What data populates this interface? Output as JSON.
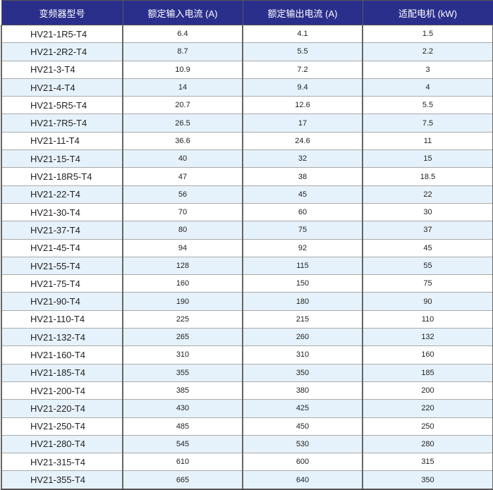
{
  "headers": [
    "变频器型号",
    "额定输入电流 (A)",
    "额定输出电流 (A)",
    "适配电机 (kW)"
  ],
  "rows": [
    [
      "HV21-1R5-T4",
      "6.4",
      "4.1",
      "1.5"
    ],
    [
      "HV21-2R2-T4",
      "8.7",
      "5.5",
      "2.2"
    ],
    [
      "HV21-3-T4",
      "10.9",
      "7.2",
      "3"
    ],
    [
      "HV21-4-T4",
      "14",
      "9.4",
      "4"
    ],
    [
      "HV21-5R5-T4",
      "20.7",
      "12.6",
      "5.5"
    ],
    [
      "HV21-7R5-T4",
      "26.5",
      "17",
      "7.5"
    ],
    [
      "HV21-11-T4",
      "36.6",
      "24.6",
      "11"
    ],
    [
      "HV21-15-T4",
      "40",
      "32",
      "15"
    ],
    [
      "HV21-18R5-T4",
      "47",
      "38",
      "18.5"
    ],
    [
      "HV21-22-T4",
      "56",
      "45",
      "22"
    ],
    [
      "HV21-30-T4",
      "70",
      "60",
      "30"
    ],
    [
      "HV21-37-T4",
      "80",
      "75",
      "37"
    ],
    [
      "HV21-45-T4",
      "94",
      "92",
      "45"
    ],
    [
      "HV21-55-T4",
      "128",
      "115",
      "55"
    ],
    [
      "HV21-75-T4",
      "160",
      "150",
      "75"
    ],
    [
      "HV21-90-T4",
      "190",
      "180",
      "90"
    ],
    [
      "HV21-110-T4",
      "225",
      "215",
      "110"
    ],
    [
      "HV21-132-T4",
      "265",
      "260",
      "132"
    ],
    [
      "HV21-160-T4",
      "310",
      "310",
      "160"
    ],
    [
      "HV21-185-T4",
      "355",
      "350",
      "185"
    ],
    [
      "HV21-200-T4",
      "385",
      "380",
      "200"
    ],
    [
      "HV21-220-T4",
      "430",
      "425",
      "220"
    ],
    [
      "HV21-250-T4",
      "485",
      "450",
      "250"
    ],
    [
      "HV21-280-T4",
      "545",
      "530",
      "280"
    ],
    [
      "HV21-315-T4",
      "610",
      "600",
      "315"
    ],
    [
      "HV21-355-T4",
      "665",
      "640",
      "350"
    ]
  ],
  "colors": {
    "header_bg": "#2b2f8c",
    "alt_row_bg": "#e6f2fb"
  }
}
